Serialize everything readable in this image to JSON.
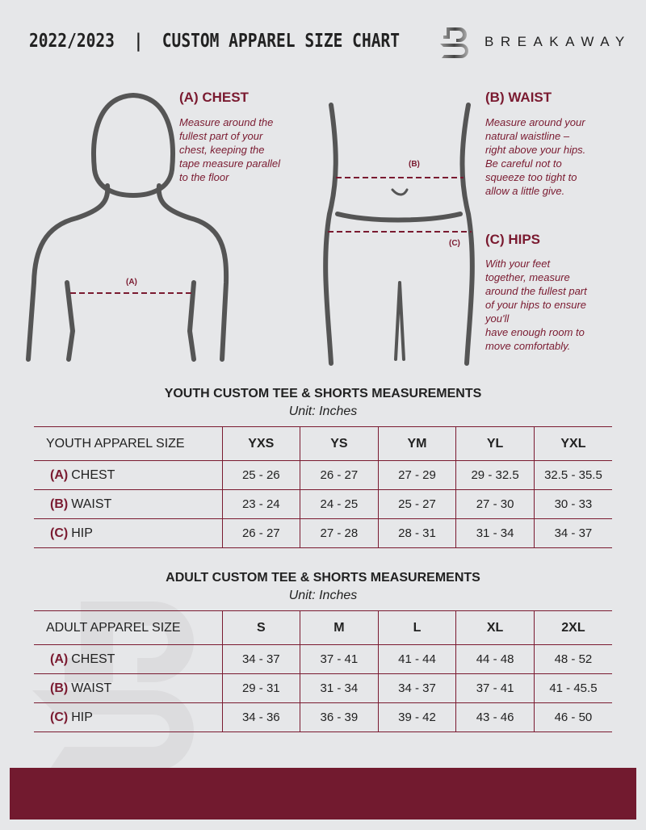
{
  "header": {
    "title": "2022/2023  |  CUSTOM APPAREL SIZE CHART",
    "brand": "BREAKAWAY",
    "logo_letter": "B"
  },
  "measures": {
    "chest": {
      "heading": "(A) CHEST",
      "text": [
        "Measure around the",
        "fullest part of your",
        "chest, keeping the",
        "tape measure parallel",
        "to the floor"
      ],
      "marker": "(A)"
    },
    "waist": {
      "heading": "(B) WAIST",
      "text": [
        "Measure around your",
        "natural waistline –",
        "right above your hips.",
        "Be careful not to",
        "squeeze too tight to",
        "allow a little give."
      ],
      "marker": "(B)"
    },
    "hips": {
      "heading": "(C) HIPS",
      "text": [
        "With your feet",
        "together, measure",
        "around the fullest part",
        "of your hips to ensure",
        "you'll",
        "have enough room to",
        "move comfortably."
      ],
      "marker": "(C)"
    }
  },
  "youth": {
    "title": "YOUTH CUSTOM TEE & SHORTS MEASUREMENTS",
    "unit": "Unit: Inches",
    "header": "YOUTH APPAREL SIZE",
    "sizes": [
      "YXS",
      "YS",
      "YM",
      "YL",
      "YXL"
    ],
    "rows": [
      {
        "code": "(A)",
        "label": "CHEST",
        "values": [
          "25 - 26",
          "26 - 27",
          "27 - 29",
          "29 - 32.5",
          "32.5 - 35.5"
        ]
      },
      {
        "code": "(B)",
        "label": "WAIST",
        "values": [
          "23 - 24",
          "24 - 25",
          "25 - 27",
          "27 - 30",
          "30 - 33"
        ]
      },
      {
        "code": "(C)",
        "label": "HIP",
        "values": [
          "26 - 27",
          "27 - 28",
          "28 - 31",
          "31 - 34",
          "34 - 37"
        ]
      }
    ]
  },
  "adult": {
    "title": "ADULT CUSTOM TEE & SHORTS MEASUREMENTS",
    "unit": "Unit: Inches",
    "header": "ADULT APPAREL SIZE",
    "sizes": [
      "S",
      "M",
      "L",
      "XL",
      "2XL"
    ],
    "rows": [
      {
        "code": "(A)",
        "label": "CHEST",
        "values": [
          "34 - 37",
          "37 - 41",
          "41 - 44",
          "44 - 48",
          "48 - 52"
        ]
      },
      {
        "code": "(B)",
        "label": "WAIST",
        "values": [
          "29 - 31",
          "31 - 34",
          "34 - 37",
          "37 - 41",
          "41 - 45.5"
        ]
      },
      {
        "code": "(C)",
        "label": "HIP",
        "values": [
          "34 - 36",
          "36 - 39",
          "39 - 42",
          "43 - 46",
          "46 - 50"
        ]
      }
    ]
  },
  "colors": {
    "accent": "#7a1a30",
    "background": "#e6e7e9",
    "footer": "#721a2f"
  }
}
